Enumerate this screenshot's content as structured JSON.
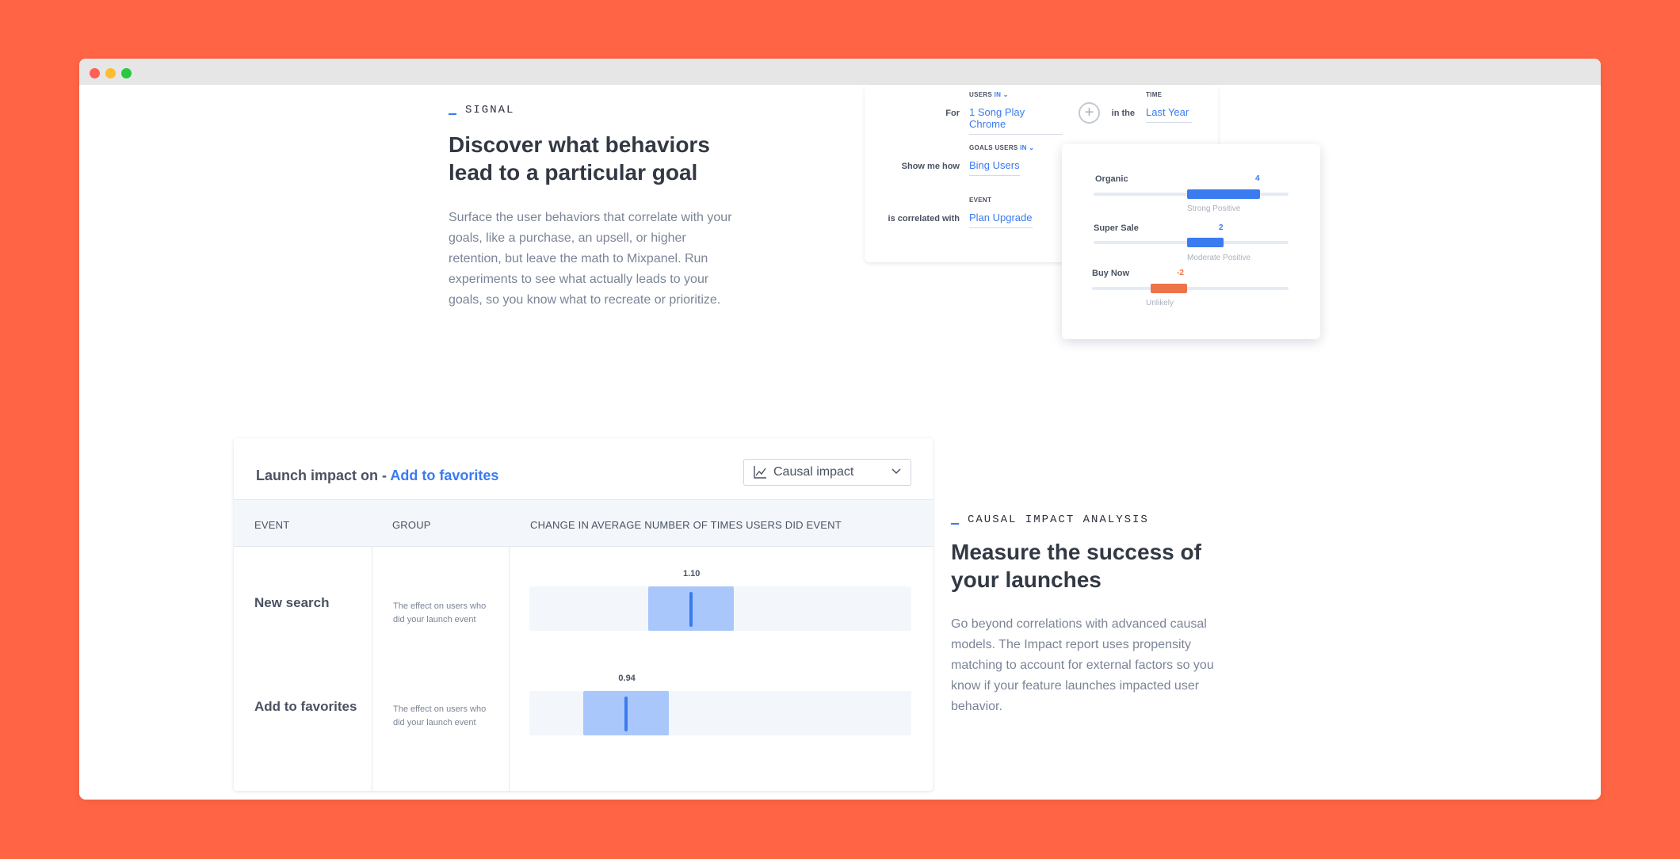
{
  "window": {
    "controls": [
      "close",
      "minimize",
      "maximize"
    ]
  },
  "signal": {
    "eyebrow": "SIGNAL",
    "heading_line1": "Discover what behaviors",
    "heading_line2": "lead to a particular goal",
    "description": "Surface the user behaviors that correlate with your goals, like a purchase, an upsell, or higher retention, but leave the math to Mixpanel. Run experiments to see what actually leads to your goals, so you know what to recreate or prioritize.",
    "query": {
      "for_label": "For",
      "users_caption": "USERS",
      "users_in": "IN",
      "users_value": "1 Song Play Chrome",
      "in_the_label": "in the",
      "time_caption": "TIME",
      "time_value": "Last Year",
      "show_me_how_label": "Show me how",
      "goals_caption": "GOALS USERS",
      "goals_in": "IN",
      "goals_value": "Bing Users",
      "correlated_label": "is correlated with",
      "event_caption": "EVENT",
      "event_value": "Plan Upgrade"
    },
    "correlations": [
      {
        "name": "Organic",
        "value": "4",
        "score": 4,
        "label": "Strong Positive",
        "color": "#3a7bef"
      },
      {
        "name": "Super Sale",
        "value": "2",
        "score": 2,
        "label": "Moderate Positive",
        "color": "#3a7bef"
      },
      {
        "name": "Buy Now",
        "value": "-2",
        "score": -2,
        "label": "Unlikely",
        "color": "#ee7349"
      }
    ]
  },
  "impact": {
    "title_prefix": "Launch impact on - ",
    "title_link": "Add to favorites",
    "dropdown_label": "Causal impact",
    "columns": [
      "EVENT",
      "GROUP",
      "CHANGE IN AVERAGE NUMBER OF TIMES USERS DID EVENT"
    ],
    "rows": [
      {
        "event": "New search",
        "group": "The effect on users who did your launch event",
        "value": "1.10",
        "change": 1.1
      },
      {
        "event": "Add to favorites",
        "group": "The effect on users who did your launch event",
        "value": "0.94",
        "change": 0.94
      }
    ]
  },
  "causal": {
    "eyebrow": "CAUSAL IMPACT ANALYSIS",
    "heading_line1": "Measure the success of",
    "heading_line2": "your launches",
    "description": "Go beyond correlations with advanced causal models. The Impact report uses propensity matching to account for external factors so you know if your feature launches impacted user behavior."
  },
  "colors": {
    "background": "#ff6544",
    "accent": "#3a7bef",
    "negative": "#ee7349"
  }
}
